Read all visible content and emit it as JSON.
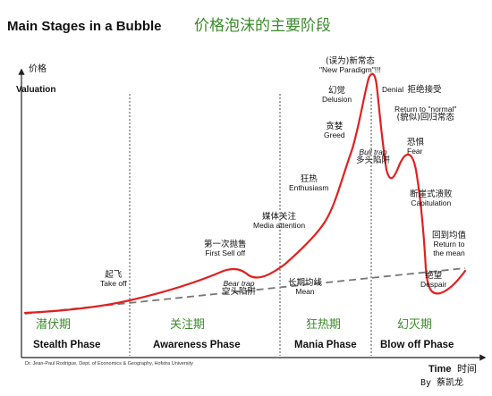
{
  "title_en": "Main Stages in a Bubble",
  "title_cn": "价格泡沫的主要阶段",
  "y_axis": {
    "cn": "价格",
    "en": "Valuation"
  },
  "x_axis": {
    "en": "Time",
    "cn": "时间"
  },
  "phases": [
    {
      "cn": "潜伏期",
      "en": "Stealth Phase"
    },
    {
      "cn": "关注期",
      "en": "Awareness Phase"
    },
    {
      "cn": "狂热期",
      "en": "Mania Phase"
    },
    {
      "cn": "幻灭期",
      "en": "Blow off Phase"
    }
  ],
  "labels": {
    "take_off": {
      "cn": "起飞",
      "en": "Take off"
    },
    "first_sell_off": {
      "cn": "第一次抛售",
      "en": "First Sell off"
    },
    "bear_trap": {
      "en": "Bear trap",
      "cn": "空头陷阱"
    },
    "media_attention": {
      "cn": "媒体关注",
      "en": "Media attention"
    },
    "enthusiasm": {
      "cn": "狂热",
      "en": "Enthusiasm"
    },
    "greed": {
      "cn": "贪婪",
      "en": "Greed"
    },
    "delusion": {
      "cn": "幻觉",
      "en": "Delusion"
    },
    "new_paradigm": {
      "cn": "(误为)新常态",
      "en": "\"New Paradigm\"!!!"
    },
    "denial": {
      "en": "Denial",
      "cn": "拒绝接受"
    },
    "return_normal": {
      "en": "Return to \"normal\"",
      "cn": "(貌似)回归常态"
    },
    "bull_trap": {
      "en": "Bull trap",
      "cn": "多头陷阱"
    },
    "fear": {
      "cn": "恐惧",
      "en": "Fear"
    },
    "capitulation": {
      "cn": "断崖式溃败",
      "en": "Capitulation"
    },
    "return_mean": {
      "cn": "回到均值",
      "en1": "Return to",
      "en2": "the mean"
    },
    "despair": {
      "cn": "绝望",
      "en": "Despair"
    },
    "mean": {
      "cn": "长期均线",
      "en": "Mean"
    }
  },
  "credit": "Dr. Jean-Paul Rodrigue, Dept. of Economics & Geography, Hofstra University",
  "byline": "By 蔡凯龙",
  "colors": {
    "curve": "#e02020",
    "mean_line": "#777777",
    "phase_cn": "#3a8a2a"
  }
}
